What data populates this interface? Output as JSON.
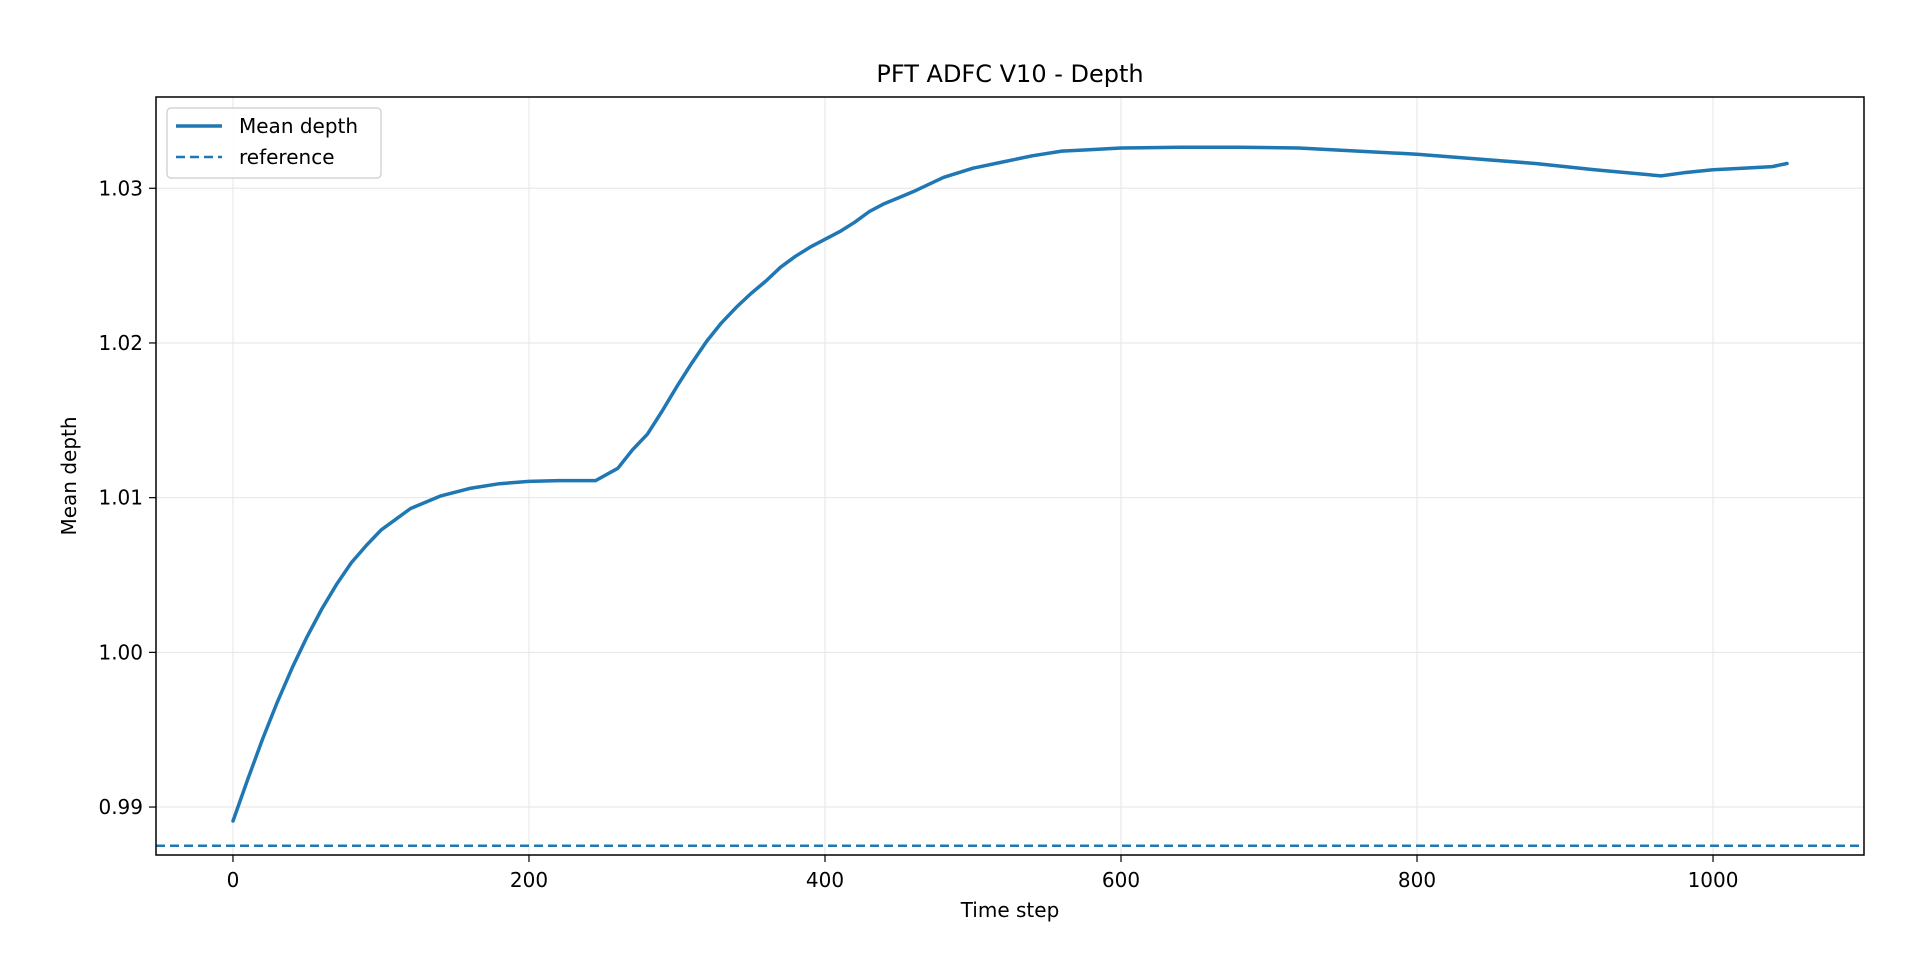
{
  "chart_data": {
    "type": "line",
    "title": "PFT ADFC V10 - Depth",
    "xlabel": "Time step",
    "ylabel": "Mean depth",
    "xlim": [
      -52,
      1102
    ],
    "ylim": [
      0.9869,
      1.0359
    ],
    "xticks": [
      0,
      200,
      400,
      600,
      800,
      1000
    ],
    "yticks": [
      0.99,
      1.0,
      1.01,
      1.02,
      1.03
    ],
    "xtick_labels": [
      "0",
      "200",
      "400",
      "600",
      "800",
      "1000"
    ],
    "ytick_labels": [
      "0.99",
      "1.00",
      "1.01",
      "1.02",
      "1.03"
    ],
    "grid": true,
    "legend": "top-left",
    "series": [
      {
        "name": "Mean depth",
        "style": "solid",
        "color": "#1f77b4",
        "x": [
          0,
          10,
          20,
          30,
          40,
          50,
          60,
          70,
          80,
          90,
          100,
          120,
          140,
          160,
          180,
          200,
          220,
          245,
          260,
          270,
          280,
          290,
          300,
          310,
          320,
          330,
          340,
          350,
          360,
          370,
          380,
          390,
          400,
          410,
          420,
          430,
          440,
          450,
          460,
          480,
          500,
          520,
          540,
          560,
          580,
          600,
          640,
          680,
          720,
          760,
          800,
          840,
          880,
          920,
          965,
          980,
          1000,
          1020,
          1040,
          1050
        ],
        "y": [
          0.9891,
          0.9918,
          0.9944,
          0.9968,
          0.999,
          1.001,
          1.0028,
          1.0044,
          1.0058,
          1.0069,
          1.0079,
          1.0093,
          1.0101,
          1.0106,
          1.0109,
          1.01105,
          1.0111,
          1.0111,
          1.0119,
          1.0131,
          1.0141,
          1.0156,
          1.0172,
          1.0187,
          1.0201,
          1.0213,
          1.0223,
          1.0232,
          1.024,
          1.0249,
          1.0256,
          1.0262,
          1.0267,
          1.0272,
          1.0278,
          1.0285,
          1.029,
          1.0294,
          1.0298,
          1.0307,
          1.0313,
          1.0317,
          1.0321,
          1.0324,
          1.0325,
          1.0326,
          1.03265,
          1.03265,
          1.0326,
          1.0324,
          1.0322,
          1.0319,
          1.0316,
          1.0312,
          1.0308,
          1.031,
          1.0312,
          1.0313,
          1.0314,
          1.0316
        ]
      },
      {
        "name": "reference",
        "style": "dashed",
        "color": "#1f77b4",
        "y_constant": 0.9875
      }
    ]
  }
}
